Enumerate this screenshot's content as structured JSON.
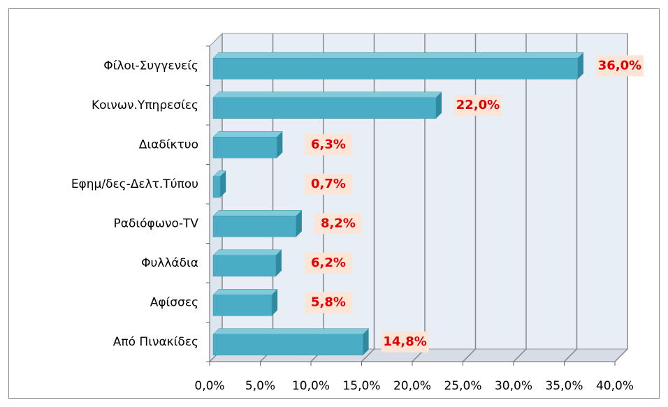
{
  "chart_data": {
    "type": "bar",
    "orientation": "horizontal",
    "categories": [
      "Φίλοι-Συγγενείς",
      "Κοινων.Υπηρεσίες",
      "Διαδίκτυο",
      "Εφημ/δες-Δελτ.Τύπου",
      "Ραδιόφωνο-TV",
      "Φυλλάδια",
      "Αφίσσες",
      "Από Πινακίδες"
    ],
    "values": [
      36,
      22,
      6.3,
      0.7,
      8.2,
      6.2,
      5.8,
      14.8
    ],
    "value_labels": [
      "36,0%",
      "22,0%",
      "6,3%",
      "0,7%",
      "8,2%",
      "6,2%",
      "5,8%",
      "14,8%"
    ],
    "color": "#4bacc6",
    "xlim": [
      0,
      40
    ],
    "xticks": [
      {
        "value": 0,
        "label": "0,0%"
      },
      {
        "value": 5,
        "label": "5,0%"
      },
      {
        "value": 10,
        "label": "10,0%"
      },
      {
        "value": 15,
        "label": "15,0%"
      },
      {
        "value": 20,
        "label": "20,0%"
      },
      {
        "value": 25,
        "label": "25,0%"
      },
      {
        "value": 30,
        "label": "30,0%"
      },
      {
        "value": 35,
        "label": "35,0%"
      },
      {
        "value": 40,
        "label": "40,0%"
      }
    ],
    "grid": true
  }
}
